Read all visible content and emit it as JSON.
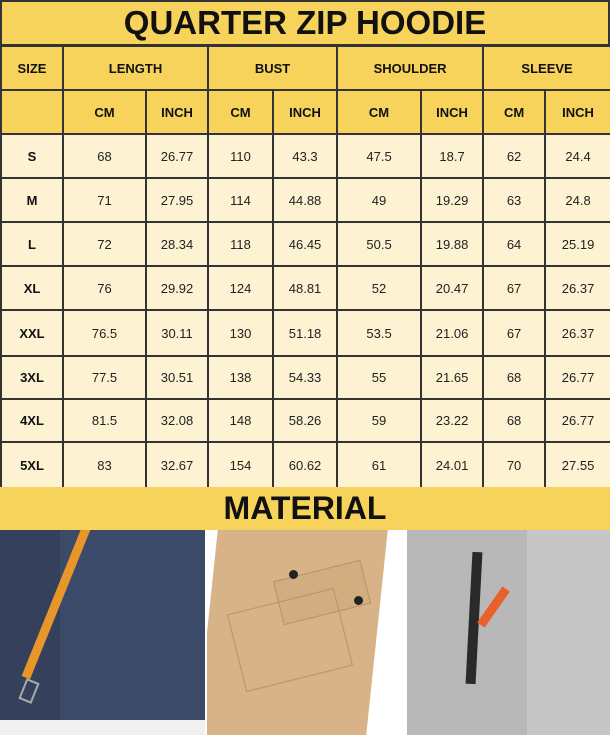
{
  "title": "QUARTER ZIP HOODIE",
  "columns": {
    "size": "SIZE",
    "groups": [
      "LENGTH",
      "BUST",
      "SHOULDER",
      "SLEEVE"
    ],
    "units": [
      "CM",
      "INCH"
    ]
  },
  "rows": [
    {
      "size": "S",
      "v": [
        "68",
        "26.77",
        "110",
        "43.3",
        "47.5",
        "18.7",
        "62",
        "24.4"
      ]
    },
    {
      "size": "M",
      "v": [
        "71",
        "27.95",
        "114",
        "44.88",
        "49",
        "19.29",
        "63",
        "24.8"
      ]
    },
    {
      "size": "L",
      "v": [
        "72",
        "28.34",
        "118",
        "46.45",
        "50.5",
        "19.88",
        "64",
        "25.19"
      ]
    },
    {
      "size": "XL",
      "v": [
        "76",
        "29.92",
        "124",
        "48.81",
        "52",
        "20.47",
        "67",
        "26.37"
      ]
    },
    {
      "size": "XXL",
      "v": [
        "76.5",
        "30.11",
        "130",
        "51.18",
        "53.5",
        "21.06",
        "67",
        "26.37"
      ]
    },
    {
      "size": "3XL",
      "v": [
        "77.5",
        "30.51",
        "138",
        "54.33",
        "55",
        "21.65",
        "68",
        "26.77"
      ]
    },
    {
      "size": "4XL",
      "v": [
        "81.5",
        "32.08",
        "148",
        "58.26",
        "59",
        "23.22",
        "68",
        "26.77"
      ]
    },
    {
      "size": "5XL",
      "v": [
        "83",
        "32.67",
        "154",
        "60.62",
        "61",
        "24.01",
        "70",
        "27.55"
      ]
    }
  ],
  "material": "MATERIAL",
  "colors": {
    "header": "#f7d35c",
    "cell": "#fdf2d2",
    "navy": "#3c4a6a",
    "tan": "#d8b387",
    "gray": "#b8b8b8",
    "accent": "#e8962a"
  }
}
